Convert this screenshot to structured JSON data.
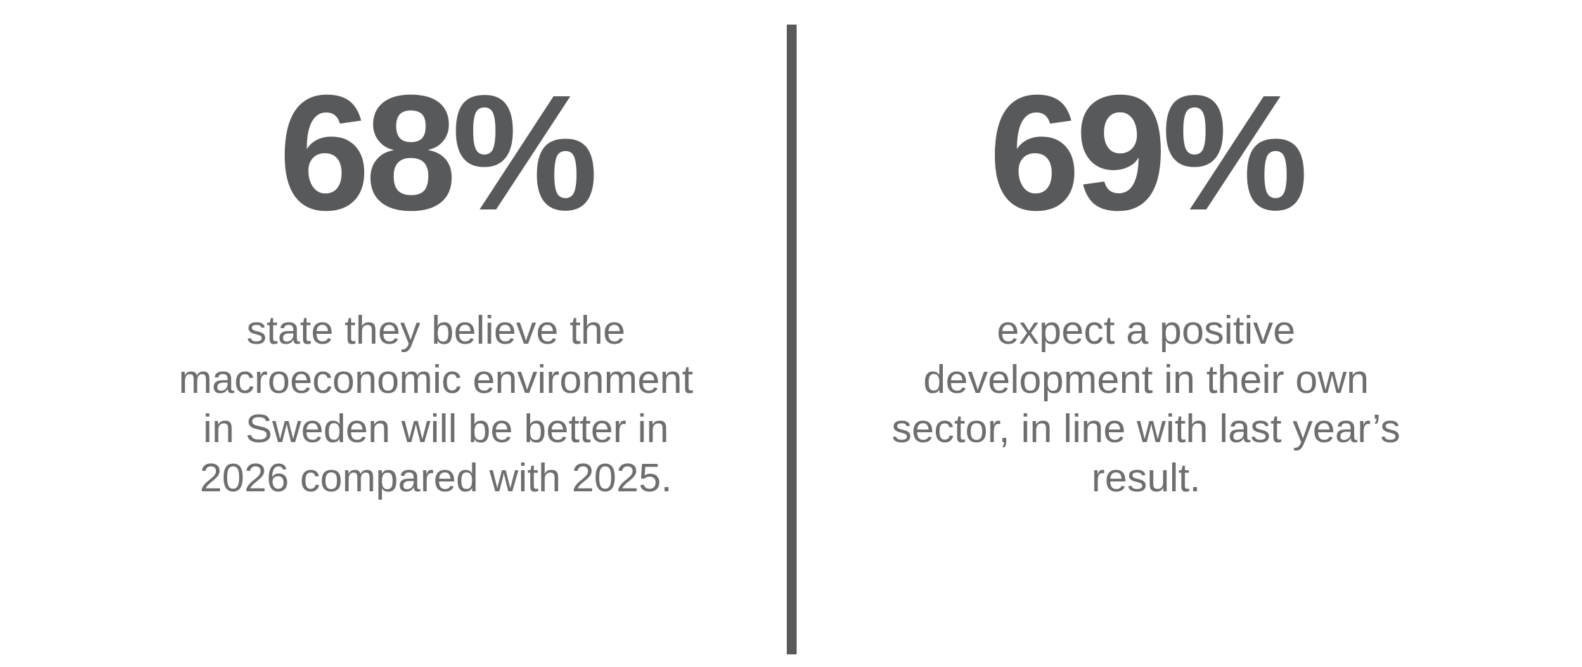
{
  "slide": {
    "background": "#ffffff",
    "stat_color": "#58595b",
    "text_color": "#6d6e70",
    "divider_color": "#58595b"
  },
  "stats": [
    {
      "value": "68%",
      "lines": [
        "state they believe the",
        "macroeconomic environment",
        "in Sweden will be better in",
        "2026 compared with 2025."
      ]
    },
    {
      "value": "69%",
      "lines": [
        "expect a positive",
        "development in their own",
        "sector, in line with last year’s",
        "result."
      ]
    }
  ]
}
